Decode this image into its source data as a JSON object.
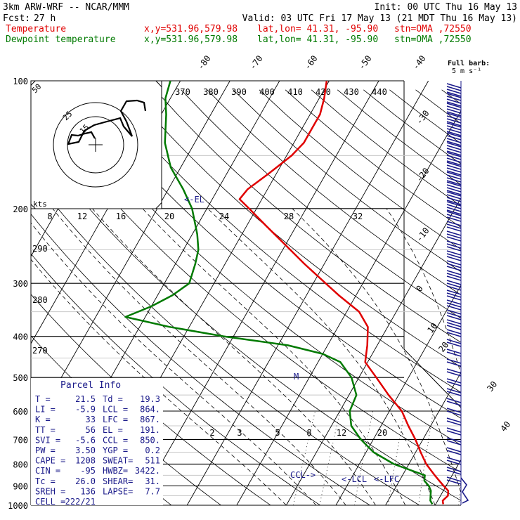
{
  "header": {
    "model": "3km ARW-WRF -- NCAR/MMM",
    "init": "Init: 00 UTC Thu 16 May 13",
    "fcst_label": "Fcst:",
    "fcst_value": "27 h",
    "valid": "Valid: 03 UTC Fri 17 May 13 (21 MDT Thu 16 May 13)",
    "temp_label": "Temperature",
    "dew_label": "Dewpoint temperature",
    "xy": "x,y=531.96,579.98",
    "latlon": "lat,lon= 41.31, -95.90",
    "stn": "stn=OMA ,72550"
  },
  "barb_legend": {
    "line1": "Full barb:",
    "line2": "5 m s⁻¹"
  },
  "hodograph": {
    "ring_labels": [
      "15",
      "25",
      "50"
    ],
    "units": "kts"
  },
  "parcel_info": {
    "title": "Parcel Info",
    "rows": [
      [
        "T  =",
        "21.5",
        "Td =",
        "19.3"
      ],
      [
        "LI =",
        "-5.9",
        "LCL =",
        "864."
      ],
      [
        "K  =",
        "33",
        "LFC =",
        "867."
      ],
      [
        "TT =",
        "56",
        "EL =",
        "191."
      ],
      [
        "SVI =",
        "-5.6",
        "CCL =",
        "850."
      ],
      [
        "PW =",
        "3.50",
        "YGP =",
        "0.2"
      ],
      [
        "CAPE =",
        "1208",
        "SWEAT=",
        "511"
      ],
      [
        "CIN =",
        "-95",
        "HWBZ=",
        "3422."
      ],
      [
        "Tc =",
        "26.0",
        "SHEAR=",
        "31."
      ],
      [
        "SREH =",
        "136",
        "LAPSE=",
        "7.7"
      ],
      [
        "CELL =",
        "222/21",
        "",
        ""
      ]
    ]
  },
  "annotations": {
    "el": "<-EL",
    "m": "M",
    "ccl": "CCL->",
    "lcl": "<-LCL",
    "lfc": "<-LFC"
  },
  "colors": {
    "temperature": "#e00000",
    "dewpoint": "#007a00",
    "grid": "#000000",
    "barbs": "#1a1a8a"
  },
  "chart_data": {
    "type": "skew-t",
    "y_scale": "log-pressure",
    "pressure_ticks": [
      100,
      200,
      300,
      400,
      500,
      600,
      700,
      800,
      900,
      1000
    ],
    "isotherm_ticks": [
      -80,
      -70,
      -60,
      -50,
      -40,
      -30,
      -20,
      -10,
      0,
      10,
      20,
      30,
      40
    ],
    "theta_labels": [
      370,
      380,
      390,
      400,
      410,
      420,
      430,
      440
    ],
    "mixing_ratio_top_labels": [
      8,
      12,
      16,
      20,
      24,
      28,
      32
    ],
    "mixing_ratio_low_labels": [
      2,
      3,
      5,
      8,
      12,
      20
    ],
    "side_theta_labels": [
      290,
      280,
      270
    ],
    "temperature": [
      {
        "p": 994,
        "t": 21.5
      },
      {
        "p": 975,
        "t": 21.0
      },
      {
        "p": 950,
        "t": 21.5
      },
      {
        "p": 925,
        "t": 21.0
      },
      {
        "p": 900,
        "t": 19.5
      },
      {
        "p": 875,
        "t": 18.0
      },
      {
        "p": 850,
        "t": 16.5
      },
      {
        "p": 800,
        "t": 13.5
      },
      {
        "p": 750,
        "t": 11.0
      },
      {
        "p": 700,
        "t": 8.5
      },
      {
        "p": 650,
        "t": 5.5
      },
      {
        "p": 600,
        "t": 2.5
      },
      {
        "p": 550,
        "t": -2.0
      },
      {
        "p": 500,
        "t": -6.5
      },
      {
        "p": 460,
        "t": -10.5
      },
      {
        "p": 420,
        "t": -12.0
      },
      {
        "p": 380,
        "t": -14.0
      },
      {
        "p": 350,
        "t": -17.5
      },
      {
        "p": 320,
        "t": -23.5
      },
      {
        "p": 300,
        "t": -27.5
      },
      {
        "p": 270,
        "t": -34.0
      },
      {
        "p": 250,
        "t": -38.5
      },
      {
        "p": 220,
        "t": -46.0
      },
      {
        "p": 200,
        "t": -51.5
      },
      {
        "p": 190,
        "t": -54.5
      },
      {
        "p": 180,
        "t": -54.0
      },
      {
        "p": 165,
        "t": -51.5
      },
      {
        "p": 150,
        "t": -49.0
      },
      {
        "p": 140,
        "t": -48.0
      },
      {
        "p": 130,
        "t": -48.0
      },
      {
        "p": 120,
        "t": -48.0
      },
      {
        "p": 110,
        "t": -49.0
      },
      {
        "p": 100,
        "t": -50.5
      }
    ],
    "dewpoint": [
      {
        "p": 994,
        "t": 19.3
      },
      {
        "p": 975,
        "t": 18.5
      },
      {
        "p": 950,
        "t": 18.0
      },
      {
        "p": 925,
        "t": 17.5
      },
      {
        "p": 900,
        "t": 16.5
      },
      {
        "p": 875,
        "t": 15.0
      },
      {
        "p": 850,
        "t": 14.5
      },
      {
        "p": 800,
        "t": 7.0
      },
      {
        "p": 750,
        "t": 1.5
      },
      {
        "p": 700,
        "t": -2.5
      },
      {
        "p": 650,
        "t": -6.0
      },
      {
        "p": 600,
        "t": -8.0
      },
      {
        "p": 550,
        "t": -8.5
      },
      {
        "p": 500,
        "t": -11.5
      },
      {
        "p": 460,
        "t": -15.5
      },
      {
        "p": 440,
        "t": -20.0
      },
      {
        "p": 420,
        "t": -28.0
      },
      {
        "p": 400,
        "t": -42.0
      },
      {
        "p": 380,
        "t": -54.0
      },
      {
        "p": 360,
        "t": -64.0
      },
      {
        "p": 340,
        "t": -60.0
      },
      {
        "p": 320,
        "t": -57.0
      },
      {
        "p": 300,
        "t": -55.0
      },
      {
        "p": 270,
        "t": -56.0
      },
      {
        "p": 250,
        "t": -57.0
      },
      {
        "p": 230,
        "t": -59.0
      },
      {
        "p": 200,
        "t": -63.0
      },
      {
        "p": 180,
        "t": -67.0
      },
      {
        "p": 160,
        "t": -72.0
      },
      {
        "p": 140,
        "t": -76.0
      },
      {
        "p": 120,
        "t": -79.0
      },
      {
        "p": 110,
        "t": -81.0
      },
      {
        "p": 100,
        "t": -82.0
      }
    ]
  }
}
